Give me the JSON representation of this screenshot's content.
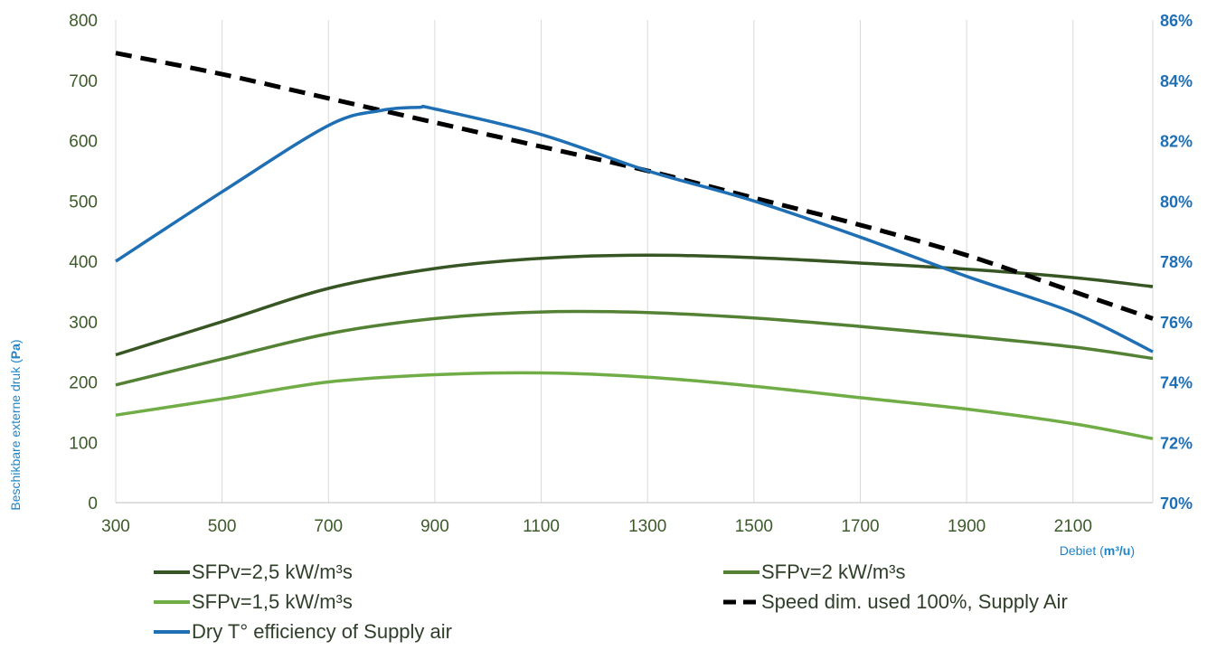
{
  "chart_data": {
    "type": "line",
    "xlabel": "Debiet",
    "xlabel_unit": "m³/u",
    "ylabel": "Beschikbare externe druk",
    "ylabel_unit": "Pa",
    "xlim": [
      300,
      2250
    ],
    "x_ticks": [
      "300",
      "500",
      "700",
      "900",
      "1100",
      "1300",
      "1500",
      "1700",
      "1900",
      "2100"
    ],
    "ylim_left": [
      0,
      800
    ],
    "y_ticks_left": [
      "0",
      "100",
      "200",
      "300",
      "400",
      "500",
      "600",
      "700",
      "800"
    ],
    "ylim_right": [
      70,
      86
    ],
    "y_ticks_right": [
      "70%",
      "72%",
      "74%",
      "76%",
      "78%",
      "80%",
      "82%",
      "84%",
      "86%"
    ],
    "grid": "vertical",
    "legend_position": "bottom",
    "series": [
      {
        "name": "SFPv=2,5 kW/m³s",
        "axis": "left",
        "color": "#375623",
        "style": "solid",
        "x": [
          300,
          500,
          700,
          900,
          1100,
          1300,
          1500,
          1700,
          1900,
          2100,
          2250
        ],
        "y": [
          245,
          300,
          355,
          388,
          405,
          410,
          406,
          397,
          387,
          373,
          358
        ]
      },
      {
        "name": "SFPv=2 kW/m³s",
        "axis": "left",
        "color": "#548235",
        "style": "solid",
        "x": [
          300,
          500,
          700,
          900,
          1100,
          1300,
          1500,
          1700,
          1900,
          2100,
          2250
        ],
        "y": [
          195,
          238,
          280,
          305,
          316,
          315,
          306,
          292,
          276,
          258,
          239
        ]
      },
      {
        "name": "SFPv=1,5 kW/m³s",
        "axis": "left",
        "color": "#70ad47",
        "style": "solid",
        "x": [
          300,
          500,
          700,
          900,
          1100,
          1300,
          1500,
          1700,
          1900,
          2100,
          2250
        ],
        "y": [
          145,
          172,
          200,
          212,
          215,
          208,
          193,
          174,
          155,
          131,
          106
        ]
      },
      {
        "name": "Speed dim. used 100%, Supply Air",
        "axis": "right",
        "color": "#000000",
        "style": "dashed",
        "x": [
          300,
          500,
          700,
          900,
          1100,
          1300,
          1500,
          1700,
          1900,
          2100,
          2250
        ],
        "y": [
          84.9,
          84.2,
          83.4,
          82.6,
          81.8,
          81.0,
          80.1,
          79.2,
          78.2,
          77.0,
          76.1
        ]
      },
      {
        "name": "Dry T° efficiency of Supply air",
        "axis": "right",
        "color": "#1f6fb5",
        "style": "solid",
        "x": [
          300,
          500,
          700,
          800,
          870,
          900,
          1100,
          1300,
          1500,
          1700,
          1900,
          2100,
          2250
        ],
        "y": [
          78.0,
          80.3,
          82.5,
          83.0,
          83.1,
          83.05,
          82.2,
          81.0,
          80.0,
          78.8,
          77.5,
          76.3,
          75.0
        ]
      }
    ]
  }
}
